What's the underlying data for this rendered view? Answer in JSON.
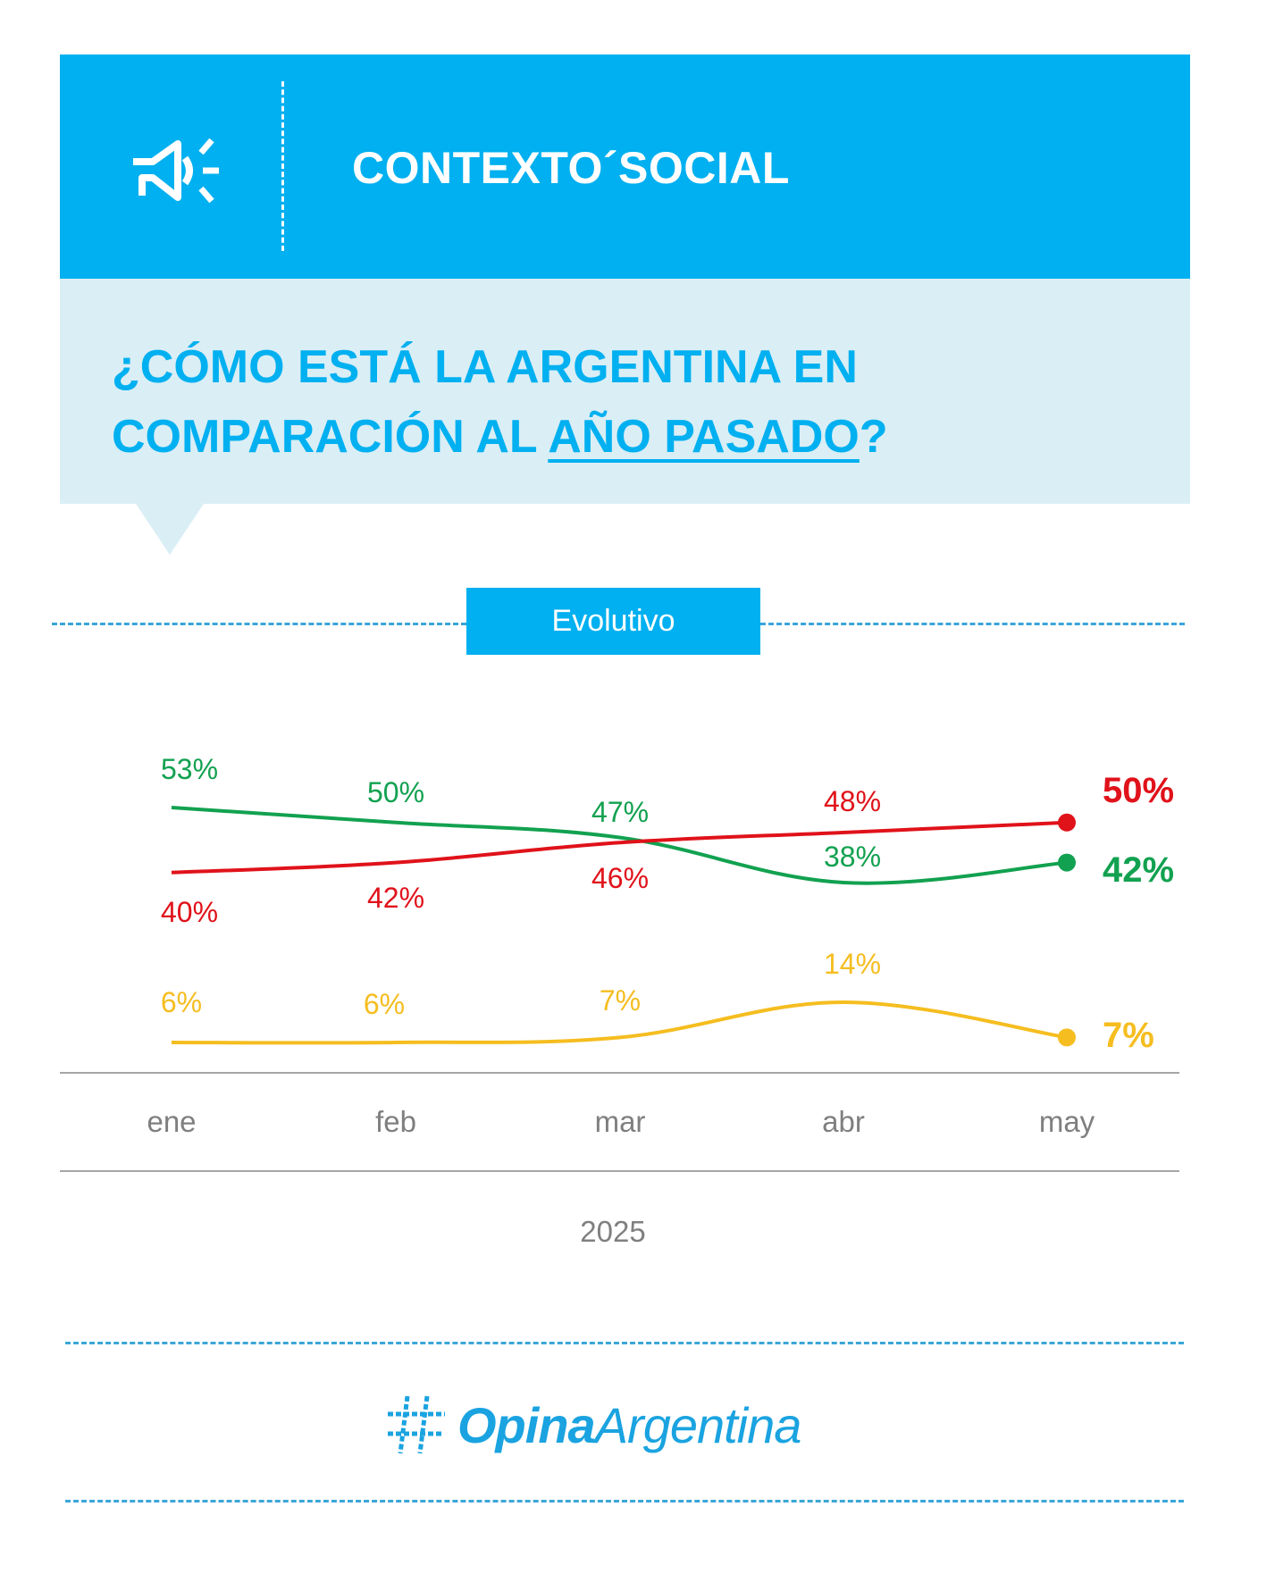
{
  "header": {
    "section_title": "CONTEXTO´SOCIAL",
    "icon": "megaphone-icon",
    "background_color": "#00b0f0"
  },
  "question": {
    "line1": "¿CÓMO ESTÁ LA ARGENTINA EN",
    "line2_prefix": "COMPARACIÓN AL ",
    "line2_underlined": "AÑO PASADO",
    "line2_suffix": "?",
    "color": "#00b0f0",
    "panel_color": "#daeef5"
  },
  "tab_label": "Evolutivo",
  "footer": {
    "logo_icon": "hashtag-icon",
    "logo_word1": "Opina",
    "logo_word2": "Argentina",
    "logo_color": "#1aa3e0"
  },
  "chart_data": {
    "type": "line",
    "title": "Evolutivo",
    "xlabel": "2025",
    "ylabel": "",
    "categories": [
      "ene",
      "feb",
      "mar",
      "abr",
      "may"
    ],
    "ylim": [
      0,
      60
    ],
    "grid": false,
    "series": [
      {
        "name": "green",
        "color": "#12a150",
        "values": [
          53,
          50,
          47,
          38,
          42
        ],
        "labels": [
          "53%",
          "50%",
          "47%",
          "38%",
          "42%"
        ],
        "label_positions": [
          "above",
          "above",
          "above",
          "above",
          "right"
        ]
      },
      {
        "name": "red",
        "color": "#e0121a",
        "values": [
          40,
          42,
          46,
          48,
          50
        ],
        "labels": [
          "40%",
          "42%",
          "46%",
          "48%",
          "50%"
        ],
        "label_positions": [
          "below",
          "below",
          "below",
          "above",
          "right"
        ]
      },
      {
        "name": "yellow",
        "color": "#f5bd1f",
        "values": [
          6,
          6,
          7,
          14,
          7
        ],
        "labels": [
          "6%",
          "6%",
          "7%",
          "14%",
          "7%"
        ],
        "label_positions": [
          "above",
          "above",
          "above",
          "above",
          "right"
        ]
      }
    ],
    "x_axis_label": "2025"
  }
}
